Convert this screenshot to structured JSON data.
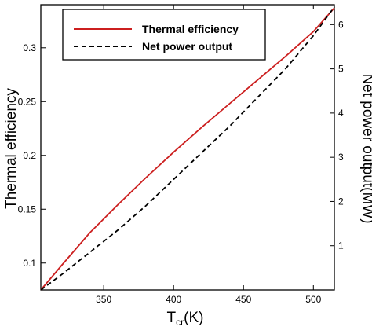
{
  "chart_data": {
    "type": "line",
    "title": "",
    "xlabel_main": "T",
    "xlabel_sub": "cr",
    "xlabel_unit": "(K)",
    "ylabel_left": "Thermal efficiency",
    "ylabel_right": "Net power output(MW)",
    "xlim": [
      305,
      515
    ],
    "ylim_left": [
      0.075,
      0.34
    ],
    "ylim_right": [
      0,
      6.45
    ],
    "x_ticks": [
      350,
      400,
      450,
      500
    ],
    "y_left_ticks": [
      0.1,
      0.15,
      0.2,
      0.25,
      0.3
    ],
    "y_right_ticks": [
      1,
      2,
      3,
      4,
      5,
      6
    ],
    "grid": false,
    "legend_position": "top-center",
    "series": [
      {
        "name": "Thermal efficiency",
        "axis": "left",
        "style": "solid",
        "color": "#cc1f1f",
        "x": [
          305,
          320,
          340,
          360,
          380,
          400,
          420,
          440,
          460,
          480,
          500,
          515
        ],
        "y": [
          0.075,
          0.098,
          0.128,
          0.154,
          0.179,
          0.203,
          0.226,
          0.248,
          0.27,
          0.292,
          0.315,
          0.337
        ]
      },
      {
        "name": "Net power output",
        "axis": "right",
        "style": "dashed",
        "color": "#000000",
        "x": [
          305,
          320,
          340,
          360,
          380,
          400,
          420,
          440,
          460,
          480,
          500,
          515
        ],
        "y": [
          0.0,
          0.35,
          0.85,
          1.35,
          1.9,
          2.5,
          3.1,
          3.7,
          4.35,
          5.0,
          5.75,
          6.4
        ]
      }
    ]
  }
}
